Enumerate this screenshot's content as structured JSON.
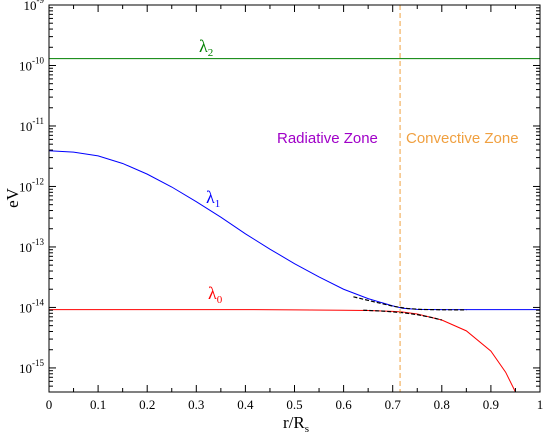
{
  "chart_data": {
    "type": "line",
    "x_axis": {
      "label_main": "r/R",
      "label_sub": "s",
      "lim": [
        0,
        1
      ],
      "ticks": [
        0,
        0.1,
        0.2,
        0.3,
        0.4,
        0.5,
        0.6,
        0.7,
        0.8,
        0.9,
        1
      ],
      "tick_labels": [
        "0",
        "0.1",
        "0.2",
        "0.3",
        "0.4",
        "0.5",
        "0.6",
        "0.7",
        "0.8",
        "0.9",
        "1"
      ]
    },
    "y_axis": {
      "label": "eV",
      "scale": "log",
      "lim": [
        4e-16,
        1e-09
      ],
      "tick_base": "10",
      "ticks": [
        -15,
        -14,
        -13,
        -12,
        -11,
        -10,
        -9
      ],
      "tick_exponents": [
        "-15",
        "-14",
        "-13",
        "-12",
        "-11",
        "-10",
        "-9"
      ]
    },
    "series": [
      {
        "label_main": "λ",
        "label_sub": "2",
        "color": "#008000",
        "x": [
          0,
          1
        ],
        "y": [
          1.3e-10,
          1.3e-10
        ]
      },
      {
        "label_main": "λ",
        "label_sub": "1",
        "color": "#0000ff",
        "x": [
          0,
          0.05,
          0.1,
          0.15,
          0.2,
          0.25,
          0.3,
          0.35,
          0.4,
          0.45,
          0.5,
          0.55,
          0.6,
          0.65,
          0.7,
          0.72,
          0.75,
          0.8,
          0.85,
          0.9,
          1
        ],
        "y": [
          3.9e-12,
          3.7e-12,
          3.2e-12,
          2.4e-12,
          1.6e-12,
          9.8e-13,
          5.6e-13,
          3.1e-13,
          1.65e-13,
          9.2e-14,
          5.3e-14,
          3.2e-14,
          2e-14,
          1.4e-14,
          1.06e-14,
          9.7e-15,
          9.3e-15,
          9.2e-15,
          9.2e-15,
          9.2e-15,
          9.2e-15
        ]
      },
      {
        "label_main": "λ",
        "label_sub": "0",
        "color": "#ff0000",
        "x": [
          0,
          0.1,
          0.2,
          0.3,
          0.4,
          0.5,
          0.6,
          0.65,
          0.7,
          0.72,
          0.75,
          0.8,
          0.85,
          0.9,
          0.93,
          0.95
        ],
        "y": [
          9.2e-15,
          9.2e-15,
          9.2e-15,
          9.2e-15,
          9.2e-15,
          9.1e-15,
          9e-15,
          8.9e-15,
          8.6e-15,
          8.4e-15,
          7.8e-15,
          6.2e-15,
          4.1e-15,
          1.9e-15,
          8.5e-16,
          4e-16
        ]
      },
      {
        "label_main": "",
        "color": "#000000",
        "dashed": true,
        "x": [
          0.62,
          0.66,
          0.7,
          0.73,
          0.76,
          0.8,
          0.85
        ],
        "y": [
          1.5e-14,
          1.25e-14,
          1.05e-14,
          9.6e-15,
          9.25e-15,
          9.15e-15,
          9.1e-15
        ]
      },
      {
        "label_main": "",
        "color": "#000000",
        "dashed": true,
        "x": [
          0.64,
          0.68,
          0.72,
          0.75,
          0.78,
          0.8
        ],
        "y": [
          9e-15,
          8.7e-15,
          8.2e-15,
          7.6e-15,
          6.8e-15,
          6.2e-15
        ]
      }
    ],
    "vline": {
      "x": 0.715,
      "color": "#f0a040",
      "dashed": true
    },
    "annotations": [
      {
        "text": "Radiative Zone",
        "color": "#a000c8"
      },
      {
        "text": "Convective Zone",
        "color": "#f0a040"
      }
    ]
  }
}
